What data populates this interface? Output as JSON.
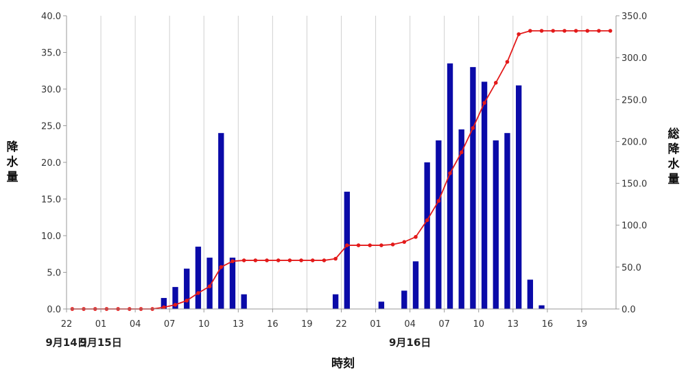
{
  "chart_data": {
    "type": "bar+line",
    "title": "",
    "xlabel": "時刻",
    "ylabel_left": "降水量",
    "ylabel_right": "総降水量",
    "ylim_left": [
      0,
      40
    ],
    "ylim_right": [
      0,
      350
    ],
    "left_ticks": [
      "0.0",
      "5.0",
      "10.0",
      "15.0",
      "20.0",
      "25.0",
      "30.0",
      "35.0",
      "40.0"
    ],
    "right_ticks": [
      "0.0",
      "50.0",
      "100.0",
      "150.0",
      "200.0",
      "250.0",
      "300.0",
      "350.0"
    ],
    "x_tick_labels": [
      "22",
      "01",
      "04",
      "07",
      "10",
      "13",
      "16",
      "19",
      "22",
      "01",
      "04",
      "07",
      "10",
      "13",
      "16",
      "19"
    ],
    "date_labels": [
      "9月14日",
      "9月15日",
      "9月16日"
    ],
    "grid": "vertical",
    "colors": {
      "bars": "#0a0aa8",
      "line": "#e31a1a",
      "grid": "#d0d0d0"
    },
    "series": [
      {
        "kind": "bar",
        "axis": "left",
        "values": [
          0,
          0,
          0,
          0,
          0,
          0,
          0,
          0,
          1.5,
          3,
          5.5,
          8.5,
          7,
          24,
          7,
          2,
          0,
          0,
          0,
          0,
          0,
          0,
          0,
          2,
          16,
          0,
          0,
          1,
          0,
          2.5,
          6.5,
          20,
          23,
          33.5,
          24.5,
          33,
          31,
          23,
          24,
          30.5,
          4,
          0.5,
          0,
          0,
          0,
          0,
          0,
          0
        ]
      },
      {
        "kind": "line",
        "axis": "right",
        "values": [
          0,
          0,
          0,
          0,
          0,
          0,
          0,
          0,
          2,
          5,
          10,
          19,
          27,
          50,
          57,
          58,
          58,
          58,
          58,
          58,
          58,
          58,
          58,
          60,
          76,
          76,
          76,
          76,
          77,
          80,
          86,
          106,
          129,
          162,
          187,
          216,
          246,
          270,
          295,
          328,
          332,
          332,
          332,
          332,
          332,
          332,
          332,
          332
        ]
      }
    ]
  }
}
